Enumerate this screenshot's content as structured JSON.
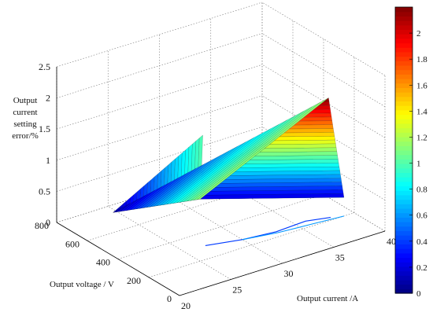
{
  "chart_data": {
    "type": "surface3d",
    "title": "",
    "xlabel": "Output current /A",
    "ylabel": "Output voltage / V",
    "zlabel_lines": [
      "Output",
      "current",
      "setting",
      "error/%"
    ],
    "xlim": [
      20,
      40
    ],
    "ylim": [
      0,
      800
    ],
    "zlim": [
      0,
      2.5
    ],
    "x_ticks": [
      "20",
      "25",
      "30",
      "35",
      "40"
    ],
    "y_ticks": [
      "0",
      "200",
      "400",
      "600",
      "800"
    ],
    "z_ticks": [
      "0",
      "0.5",
      "1",
      "1.5",
      "2",
      "2.5"
    ],
    "colormap": "jet",
    "colorbar": {
      "range": [
        0,
        2.2
      ],
      "ticks": [
        "0",
        "0.2",
        "0.4",
        "0.6",
        "0.8",
        "1",
        "1.2",
        "1.4",
        "1.6",
        "1.8",
        "2"
      ]
    },
    "grid": true,
    "surface_vertices": [
      {
        "x": 24,
        "y": 700,
        "z": 0.1
      },
      {
        "x": 36,
        "y": 100,
        "z": 2.2
      },
      {
        "x": 39,
        "y": 200,
        "z": 0.3
      },
      {
        "x": 31,
        "y": 600,
        "z": 0.1
      },
      {
        "x": 26,
        "y": 250,
        "z": 1.9
      },
      {
        "x": 36,
        "y": 350,
        "z": 1.3
      }
    ],
    "floor_contours": [
      {
        "x": [
          27,
          30,
          33,
          36,
          38
        ],
        "y": [
          300,
          260,
          240,
          250,
          220
        ],
        "level": 0.4
      },
      {
        "x": [
          30,
          33,
          36,
          39
        ],
        "y": [
          260,
          230,
          215,
          200
        ],
        "level": 0.6
      }
    ]
  }
}
